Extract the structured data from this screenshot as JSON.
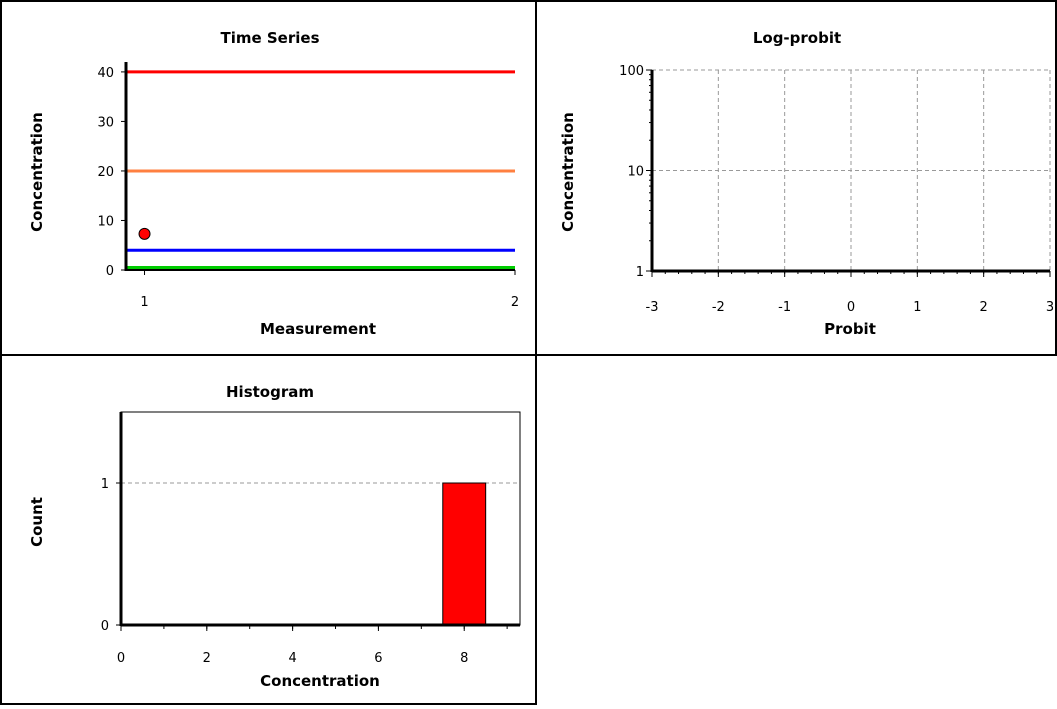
{
  "colors": {
    "red": "#ff0000",
    "orange": "#ff8040",
    "blue": "#0000ff",
    "green": "#00cc00",
    "black": "#000000",
    "grid": "#999999"
  },
  "chart_data": [
    {
      "id": "time-series",
      "type": "line",
      "title": "Time Series",
      "xlabel": "Measurement",
      "ylabel": "Concentration",
      "xlim": [
        0.95,
        2.0
      ],
      "ylim": [
        0,
        42
      ],
      "xticks": [
        "1",
        "2"
      ],
      "yticks": [
        "0",
        "10",
        "20",
        "30",
        "40"
      ],
      "reference_lines": [
        {
          "y": 40,
          "color": "#ff0000"
        },
        {
          "y": 20,
          "color": "#ff8040"
        },
        {
          "y": 4,
          "color": "#0000ff"
        },
        {
          "y": 0.5,
          "color": "#00cc00"
        }
      ],
      "points": [
        {
          "x": 1,
          "y": 7.3
        }
      ]
    },
    {
      "id": "log-probit",
      "type": "scatter",
      "title": "Log-probit",
      "xlabel": "Probit",
      "ylabel": "Concentration",
      "xlim": [
        -3,
        3
      ],
      "ylim": [
        1,
        100
      ],
      "yscale": "log",
      "grid": true,
      "xticks": [
        "-3",
        "-2",
        "-1",
        "0",
        "1",
        "2",
        "3"
      ],
      "yticks": [
        "1",
        "10",
        "100"
      ]
    },
    {
      "id": "histogram",
      "type": "bar",
      "title": "Histogram",
      "xlabel": "Concentration",
      "ylabel": "Count",
      "xlim": [
        0,
        9.3
      ],
      "ylim": [
        0,
        1.5
      ],
      "xticks": [
        "0",
        "2",
        "4",
        "6",
        "8"
      ],
      "yticks": [
        "0",
        "1"
      ],
      "bins": [
        {
          "x0": 7.5,
          "x1": 8.5,
          "count": 1
        }
      ]
    }
  ]
}
